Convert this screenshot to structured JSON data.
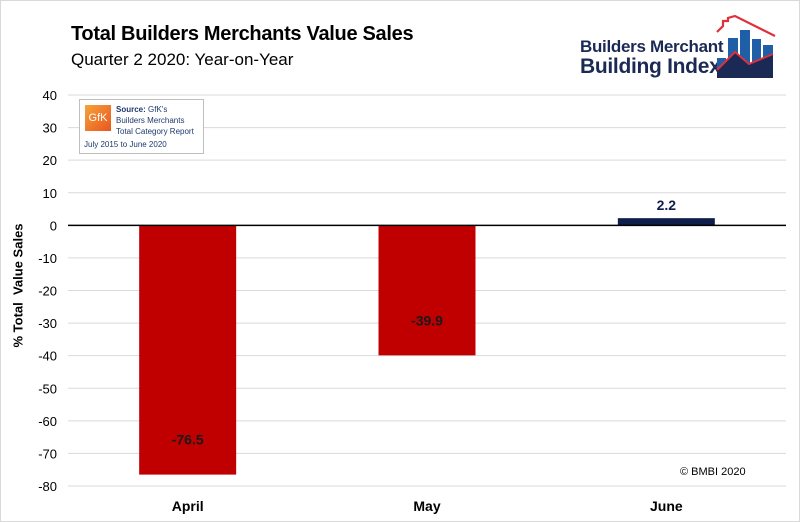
{
  "header": {
    "title": "Total Builders Merchants Value Sales",
    "subtitle": "Quarter 2 2020: Year-on-Year"
  },
  "logo": {
    "line1": "Builders Merchant",
    "line2": "Building Index"
  },
  "source_box": {
    "logo_text": "GfK",
    "source_label": "Source:",
    "source_name": " GfK's",
    "line2": "Builders Merchants",
    "line3": "Total Category Report",
    "line4": "July 2015 to June 2020"
  },
  "copyright": "© BMBI 2020",
  "colors": {
    "negative": "#c00000",
    "positive": "#0f1f4b",
    "grid": "#d9d9d9",
    "logo_navy": "#1b2a55",
    "logo_blue": "#1f5fa8",
    "logo_red": "#e0303a"
  },
  "chart_data": {
    "type": "bar",
    "title": "Total Builders Merchants Value Sales",
    "subtitle": "Quarter 2 2020: Year-on-Year",
    "xlabel": "",
    "ylabel": "% Total  Value Sales",
    "categories": [
      "April",
      "May",
      "June"
    ],
    "values": [
      -76.5,
      -39.9,
      2.2
    ],
    "data_labels": [
      "-76.5",
      "-39.9",
      "2.2"
    ],
    "ylim": [
      -80,
      40
    ],
    "yticks": [
      40,
      30,
      20,
      10,
      0,
      -10,
      -20,
      -30,
      -40,
      -50,
      -60,
      -70,
      -80
    ],
    "ytick_labels": [
      "40",
      "30",
      "20",
      "10",
      "0",
      "-10",
      "-20",
      "-30",
      "-40",
      "-50",
      "-60",
      "-70",
      "-80"
    ],
    "grid": true,
    "legend": "none"
  }
}
